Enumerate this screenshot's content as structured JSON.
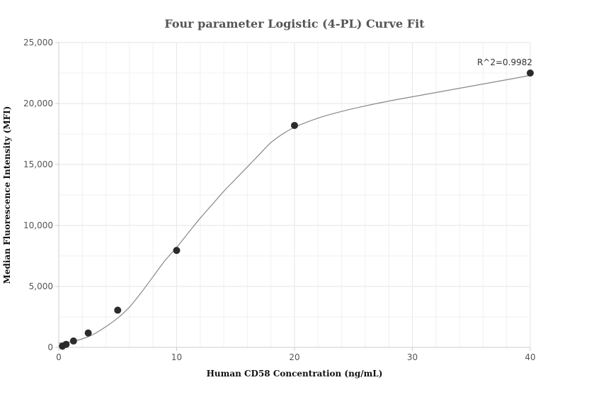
{
  "chart_data": {
    "type": "scatter",
    "title": "Four parameter Logistic (4-PL) Curve Fit",
    "xlabel": "Human CD58 Concentration (ng/mL)",
    "ylabel": "Median Fluorescence Intensity (MFI)",
    "xlim": [
      0,
      40
    ],
    "ylim": [
      0,
      25000
    ],
    "x_ticks": [
      0,
      10,
      20,
      30,
      40
    ],
    "y_ticks": [
      0,
      5000,
      10000,
      15000,
      20000,
      25000
    ],
    "x_tick_labels": [
      "0",
      "10",
      "20",
      "30",
      "40"
    ],
    "y_tick_labels": [
      "0",
      "5,000",
      "10,000",
      "15,000",
      "20,000",
      "25,000"
    ],
    "grid": true,
    "points": [
      {
        "x": 0.3125,
        "y": 100
      },
      {
        "x": 0.625,
        "y": 250
      },
      {
        "x": 1.25,
        "y": 520
      },
      {
        "x": 2.5,
        "y": 1180
      },
      {
        "x": 5,
        "y": 3050
      },
      {
        "x": 10,
        "y": 7950
      },
      {
        "x": 20,
        "y": 18200
      },
      {
        "x": 40,
        "y": 22500
      }
    ],
    "fit_curve": {
      "model": "4-PL",
      "points": [
        [
          0,
          350
        ],
        [
          1,
          450
        ],
        [
          2,
          700
        ],
        [
          3,
          1100
        ],
        [
          4,
          1700
        ],
        [
          5,
          2400
        ],
        [
          6,
          3300
        ],
        [
          7,
          4500
        ],
        [
          8,
          5800
        ],
        [
          9,
          7100
        ],
        [
          10,
          8200
        ],
        [
          11,
          9400
        ],
        [
          12,
          10600
        ],
        [
          13,
          11700
        ],
        [
          14,
          12800
        ],
        [
          15,
          13800
        ],
        [
          16,
          14800
        ],
        [
          17,
          15800
        ],
        [
          18,
          16800
        ],
        [
          19,
          17500
        ],
        [
          20,
          18050
        ],
        [
          22,
          18800
        ],
        [
          24,
          19350
        ],
        [
          26,
          19800
        ],
        [
          28,
          20200
        ],
        [
          30,
          20550
        ],
        [
          32,
          20900
        ],
        [
          34,
          21250
        ],
        [
          36,
          21600
        ],
        [
          38,
          21950
        ],
        [
          40,
          22300
        ]
      ]
    },
    "annotation": {
      "text": "R^2=0.9982",
      "x": 40,
      "y": 22500
    },
    "colors": {
      "points": "#2b2b2b",
      "curve": "#888888",
      "grid": "#e6e6ee",
      "axis": "#cccccc"
    }
  }
}
